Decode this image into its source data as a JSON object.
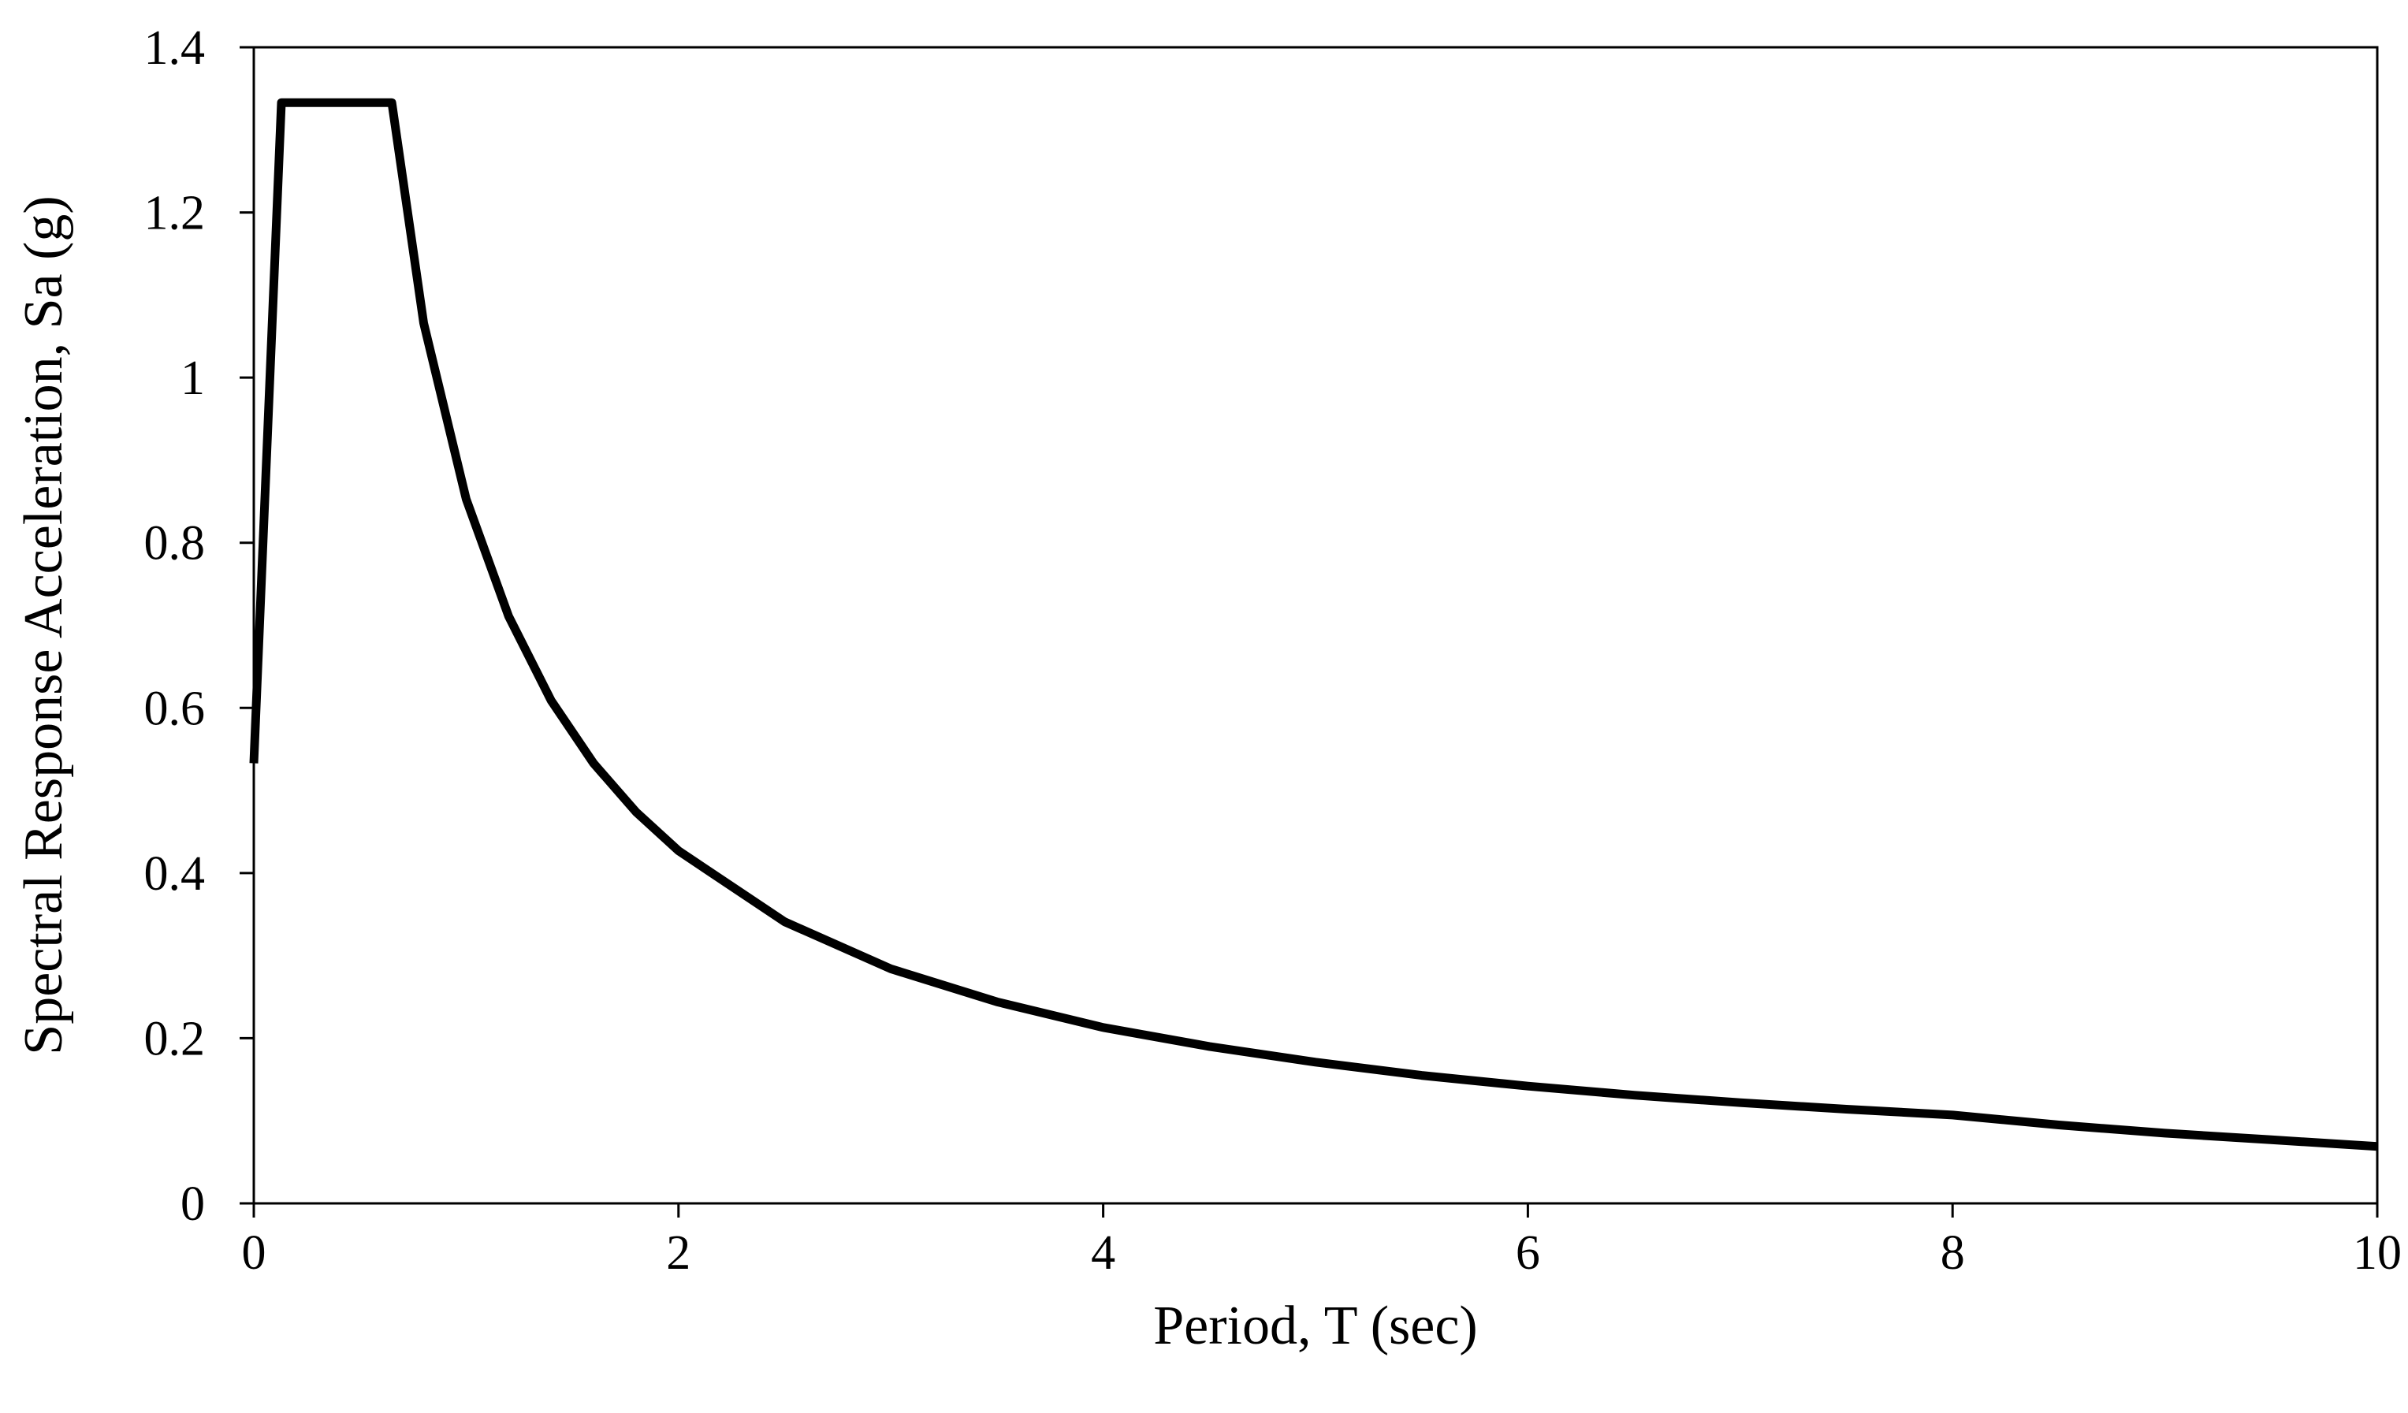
{
  "chart_data": {
    "type": "line",
    "title": "",
    "xlabel": "Period, T (sec)",
    "ylabel": "Spectral Response Acceleration, Sa (g)",
    "xlim": [
      0,
      10
    ],
    "ylim": [
      0,
      1.4
    ],
    "x_ticks": [
      0,
      2,
      4,
      6,
      8,
      10
    ],
    "y_ticks": [
      0,
      0.2,
      0.4,
      0.6,
      0.8,
      1,
      1.2,
      1.4
    ],
    "x_tick_labels": [
      "0",
      "2",
      "4",
      "6",
      "8",
      "10"
    ],
    "y_tick_labels": [
      "0",
      "0.2",
      "0.4",
      "0.6",
      "0.8",
      "1",
      "1.2",
      "1.4"
    ],
    "grid": false,
    "legend": "none",
    "line_color": "#000000",
    "series": [
      {
        "x": [
          0.0,
          0.13,
          0.65,
          0.8,
          1.0,
          1.2,
          1.4,
          1.6,
          1.8,
          2.0,
          2.5,
          3.0,
          3.5,
          4.0,
          4.5,
          5.0,
          5.5,
          6.0,
          6.5,
          7.0,
          7.5,
          8.0,
          8.5,
          9.0,
          9.5,
          10.0
        ],
        "y": [
          0.533,
          1.333,
          1.333,
          1.066,
          0.853,
          0.711,
          0.609,
          0.533,
          0.474,
          0.427,
          0.341,
          0.284,
          0.244,
          0.213,
          0.19,
          0.171,
          0.155,
          0.142,
          0.131,
          0.122,
          0.114,
          0.107,
          0.095,
          0.085,
          0.077,
          0.069
        ]
      }
    ]
  }
}
